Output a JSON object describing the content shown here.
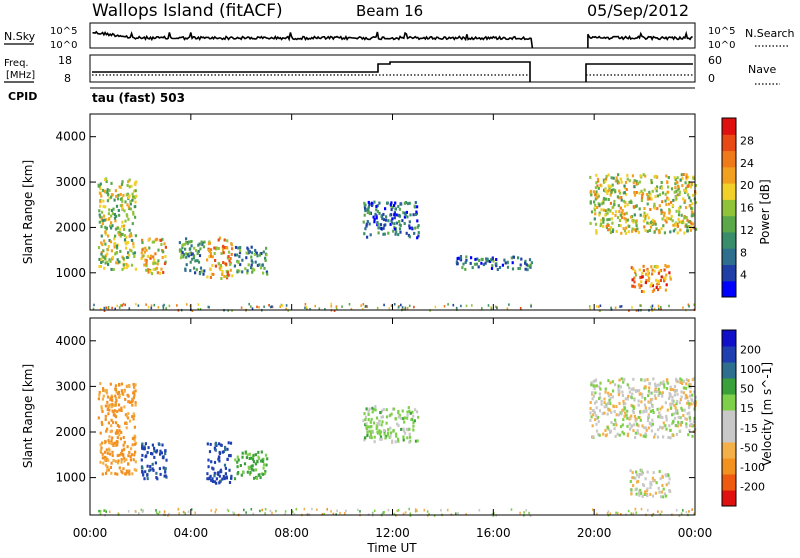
{
  "header": {
    "station": "Wallops Island (fitACF)",
    "beam": "Beam 16",
    "date": "05/Sep/2012"
  },
  "strip_panels": {
    "nsky": {
      "left_label": "N.Sky",
      "tick_top": "10^5",
      "tick_bottom": "10^0",
      "right_label": "N.Search",
      "right_tick_top": "10^5",
      "right_tick_bottom": "10^0"
    },
    "freq": {
      "left_label_line1": "Freq.",
      "left_label_line2": "[MHz]",
      "tick_top": "18",
      "tick_bottom": "8",
      "right_label": "Nave",
      "right_tick_top": "60",
      "right_tick_bottom": "0"
    },
    "cpid": {
      "left_label": "CPID",
      "value": "tau (fast) 503"
    }
  },
  "time_axis": {
    "label": "Time UT",
    "ticks": [
      "00:00",
      "04:00",
      "08:00",
      "12:00",
      "16:00",
      "20:00",
      "00:00"
    ]
  },
  "colors": {
    "power_scale": [
      "#0000ff",
      "#1f3fa6",
      "#2e6e8e",
      "#3a8d6a",
      "#5aa84a",
      "#8fc43a",
      "#f2d02a",
      "#f2a020",
      "#ee7a1a",
      "#e84a16",
      "#e01010"
    ],
    "velocity_scale": [
      "#e01010",
      "#ee5a10",
      "#f29020",
      "#f4b048",
      "#c8c8c8",
      "#c8c8c8",
      "#7ed04a",
      "#3aa03a",
      "#2e6e8e",
      "#1f3fb0",
      "#1010c8"
    ],
    "gray": "#c8c8c8"
  },
  "chart_data": [
    {
      "type": "heatmap",
      "title": "",
      "xlabel": "Time UT",
      "ylabel": "Slant Range [km]",
      "xlim": [
        0,
        24
      ],
      "ylim": [
        180,
        4500
      ],
      "y_ticks": [
        "1000",
        "2000",
        "3000",
        "4000"
      ],
      "colorbar": {
        "label": "Power [dB]",
        "range": [
          0,
          32
        ],
        "ticks": [
          "4",
          "8",
          "12",
          "16",
          "20",
          "24",
          "28"
        ]
      },
      "data_gap_hours": [
        17.55,
        19.75
      ],
      "regions": [
        {
          "t": [
            0.3,
            1.8
          ],
          "range_km": [
            1100,
            3100
          ],
          "value_db": 16
        },
        {
          "t": [
            2.0,
            3.0
          ],
          "range_km": [
            1000,
            1800
          ],
          "value_db": 20
        },
        {
          "t": [
            3.5,
            4.5
          ],
          "range_km": [
            1000,
            1800
          ],
          "value_db": 10
        },
        {
          "t": [
            4.6,
            5.6
          ],
          "range_km": [
            900,
            1800
          ],
          "value_db": 22
        },
        {
          "t": [
            5.7,
            7.0
          ],
          "range_km": [
            1000,
            1600
          ],
          "value_db": 10
        },
        {
          "t": [
            10.8,
            13.0
          ],
          "range_km": [
            1800,
            2600
          ],
          "value_db": 6
        },
        {
          "t": [
            14.5,
            17.5
          ],
          "range_km": [
            1100,
            1400
          ],
          "value_db": 8
        },
        {
          "t": [
            19.8,
            24.0
          ],
          "range_km": [
            1900,
            3200
          ],
          "value_db": 18
        },
        {
          "t": [
            21.4,
            23.0
          ],
          "range_km": [
            600,
            1200
          ],
          "value_db": 24
        }
      ]
    },
    {
      "type": "heatmap",
      "title": "",
      "xlabel": "Time UT",
      "ylabel": "Slant Range [km]",
      "xlim": [
        0,
        24
      ],
      "ylim": [
        180,
        4500
      ],
      "y_ticks": [
        "1000",
        "2000",
        "3000",
        "4000"
      ],
      "colorbar": {
        "label": "Velocity [m s^-1]",
        "range": [
          -250,
          250
        ],
        "ticks": [
          "200",
          "100",
          "50",
          "15",
          "-15",
          "-50",
          "-100",
          "-200"
        ]
      },
      "data_gap_hours": [
        17.55,
        19.75
      ],
      "regions": [
        {
          "t": [
            0.3,
            1.8
          ],
          "range_km": [
            1100,
            3100
          ],
          "value_ms": -60
        },
        {
          "t": [
            2.0,
            3.0
          ],
          "range_km": [
            1000,
            1800
          ],
          "value_ms": 220
        },
        {
          "t": [
            4.6,
            5.6
          ],
          "range_km": [
            900,
            1800
          ],
          "value_ms": 220
        },
        {
          "t": [
            5.7,
            7.0
          ],
          "range_km": [
            1000,
            1600
          ],
          "value_ms": 60
        },
        {
          "t": [
            10.8,
            13.0
          ],
          "range_km": [
            1800,
            2600
          ],
          "value_ms": 30
        },
        {
          "t": [
            19.8,
            24.0
          ],
          "range_km": [
            1900,
            3200
          ],
          "value_ms": 0
        },
        {
          "t": [
            21.4,
            23.0
          ],
          "range_km": [
            600,
            1200
          ],
          "value_ms": 0
        }
      ]
    }
  ]
}
